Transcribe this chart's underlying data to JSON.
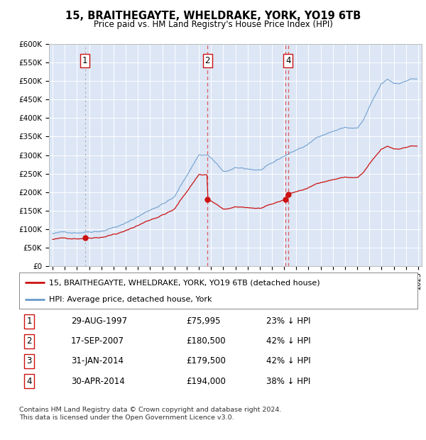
{
  "title": "15, BRAITHEGAYTE, WHELDRAKE, YORK, YO19 6TB",
  "subtitle": "Price paid vs. HM Land Registry's House Price Index (HPI)",
  "ylim": [
    0,
    600000
  ],
  "yticks": [
    0,
    50000,
    100000,
    150000,
    200000,
    250000,
    300000,
    350000,
    400000,
    450000,
    500000,
    550000,
    600000
  ],
  "xlim_start": 1994.7,
  "xlim_end": 2025.3,
  "background_color": "#dce6f5",
  "transactions": [
    {
      "label": "1",
      "date": 1997.65,
      "price": 75995,
      "show_in_chart": true,
      "vline_color": "#aaaaaa"
    },
    {
      "label": "2",
      "date": 2007.71,
      "price": 180500,
      "show_in_chart": true,
      "vline_color": "#dd4444"
    },
    {
      "label": "3",
      "date": 2014.08,
      "price": 179500,
      "show_in_chart": false,
      "vline_color": "#dd4444"
    },
    {
      "label": "4",
      "date": 2014.33,
      "price": 194000,
      "show_in_chart": true,
      "vline_color": "#dd4444"
    }
  ],
  "red_color": "#cc1111",
  "blue_color": "#6699cc",
  "legend_label_red": "15, BRAITHEGAYTE, WHELDRAKE, YORK, YO19 6TB (detached house)",
  "legend_label_blue": "HPI: Average price, detached house, York",
  "footer": "Contains HM Land Registry data © Crown copyright and database right 2024.\nThis data is licensed under the Open Government Licence v3.0.",
  "table_rows": [
    [
      "1",
      "29-AUG-1997",
      "£75,995",
      "23% ↓ HPI"
    ],
    [
      "2",
      "17-SEP-2007",
      "£180,500",
      "42% ↓ HPI"
    ],
    [
      "3",
      "31-JAN-2014",
      "£179,500",
      "42% ↓ HPI"
    ],
    [
      "4",
      "30-APR-2014",
      "£194,000",
      "38% ↓ HPI"
    ]
  ]
}
